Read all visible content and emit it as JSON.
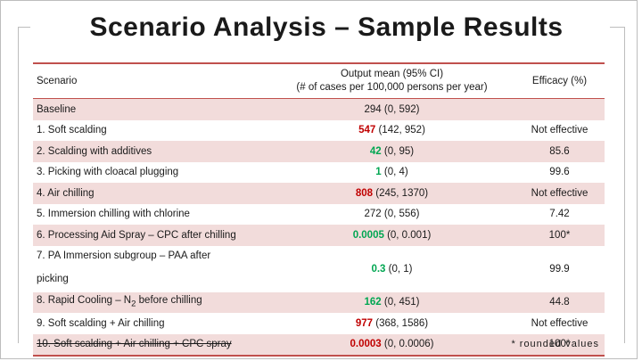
{
  "title": "Scenario Analysis – Sample Results",
  "headers": {
    "scenario": "Scenario",
    "output_line1": "Output mean (95% CI)",
    "output_line2": "(# of cases per 100,000 persons per year)",
    "efficacy": "Efficacy (%)"
  },
  "rows": [
    {
      "label": "Baseline",
      "mean": "294",
      "ci": " (0, 592)",
      "mean_color": "black",
      "efficacy": ""
    },
    {
      "label": "1. Soft scalding",
      "mean": "547",
      "ci": " (142, 952)",
      "mean_color": "red",
      "efficacy": "Not effective"
    },
    {
      "label": "2. Scalding with additives",
      "mean": "42",
      "ci": " (0, 95)",
      "mean_color": "green",
      "efficacy": "85.6"
    },
    {
      "label": "3. Picking with cloacal plugging",
      "mean": "1",
      "ci": " (0, 4)",
      "mean_color": "green",
      "efficacy": "99.6"
    },
    {
      "label": "4. Air chilling",
      "mean": "808",
      "ci": " (245, 1370)",
      "mean_color": "red",
      "efficacy": "Not effective"
    },
    {
      "label": "5. Immersion chilling with chlorine",
      "mean": "272",
      "ci": " (0, 556)",
      "mean_color": "black",
      "efficacy": "7.42"
    },
    {
      "label": "6. Processing Aid Spray – CPC after chilling",
      "mean": "0.0005",
      "ci": " (0, 0.001)",
      "mean_color": "green",
      "efficacy": "100*"
    },
    {
      "label": "7. PA Immersion subgroup – PAA after",
      "label2": "picking",
      "mean": "0.3",
      "ci": " (0, 1)",
      "mean_color": "green",
      "efficacy": "99.9"
    },
    {
      "label": "8. Rapid Cooling – N",
      "label_sub": "2",
      "label_tail": " before chilling",
      "mean": "162",
      "ci": " (0, 451)",
      "mean_color": "green",
      "efficacy": "44.8"
    },
    {
      "label": "9. Soft scalding + Air chilling",
      "mean": "977",
      "ci": " (368, 1586)",
      "mean_color": "red",
      "efficacy": "Not effective"
    },
    {
      "label": "10. Soft scalding + Air chilling + CPC spray",
      "mean": "0.0003",
      "ci": " (0, 0.0006)",
      "mean_color": "red",
      "efficacy": "100*"
    }
  ],
  "footnote": "* rounded values",
  "colors": {
    "accent_line": "#c0504d",
    "row_shade": "#f2dcdb",
    "red_value": "#c00000",
    "green_value": "#00a651"
  }
}
